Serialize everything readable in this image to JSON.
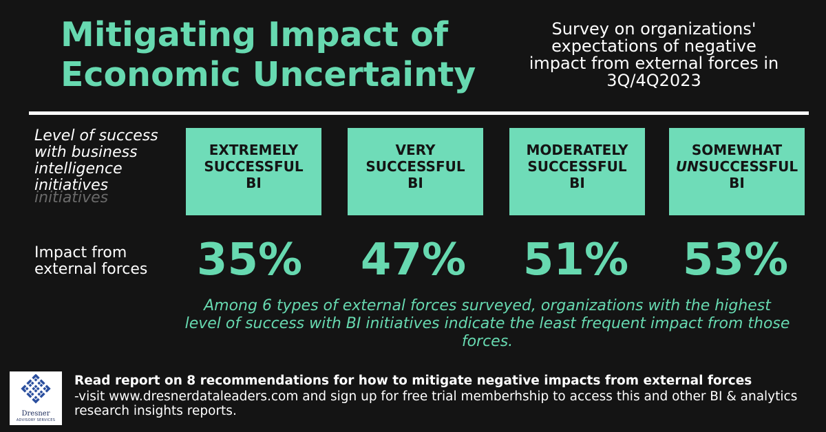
{
  "header": {
    "title": "Mitigating Impact of Economic Uncertainty",
    "subtitle": "Survey on organizations' expectations of negative impact from external forces in 3Q/4Q2023"
  },
  "labels": {
    "success_level": "Level of success with business intelligence initiatives",
    "success_level_ghost": "initiatives",
    "impact": "Impact from external forces"
  },
  "categories": [
    {
      "line1": "EXTREMELY",
      "line2": "SUCCESSFUL",
      "line3": "BI",
      "value": "35%"
    },
    {
      "line1": "VERY",
      "line2": "SUCCESSFUL",
      "line3": "BI",
      "value": "47%"
    },
    {
      "line1": "MODERATELY",
      "line2": "SUCCESSFUL",
      "line3": "BI",
      "value": "51%"
    },
    {
      "line1": "SOMEWHAT",
      "line2_em": "UN",
      "line2_rest": "SUCCESSFUL",
      "line3": "BI",
      "value": "53%"
    }
  ],
  "note": "Among 6 types of external forces surveyed, organizations with the highest level of success with BI initiatives indicate the least frequent impact from those forces.",
  "footer": {
    "headline": "Read report on 8 recommendations for how to mitigate negative impacts from external forces",
    "body": "-visit www.dresnerdataleaders.com and sign up for free trial memberhship to access this and other BI & analytics research insights reports."
  },
  "logo": {
    "name": "Dresner",
    "tagline": "ADVISORY SERVICES",
    "icon": "knot-icon"
  },
  "colors": {
    "background": "#141414",
    "accent": "#67d9b0",
    "box": "#6fdcb8"
  }
}
